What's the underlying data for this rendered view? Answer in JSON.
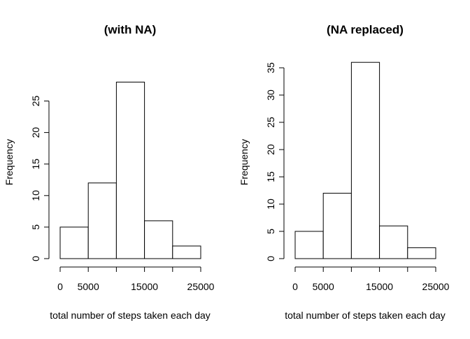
{
  "chart_data": [
    {
      "type": "bar",
      "title": "(with NA)",
      "xlabel": "total number of steps taken each day",
      "ylabel": "Frequency",
      "bins": [
        [
          0,
          5000
        ],
        [
          5000,
          10000
        ],
        [
          10000,
          15000
        ],
        [
          15000,
          20000
        ],
        [
          20000,
          25000
        ]
      ],
      "values": [
        5,
        12,
        28,
        6,
        2
      ],
      "x_ticks": [
        0,
        5000,
        15000,
        25000
      ],
      "y_ticks": [
        0,
        5,
        10,
        15,
        20,
        25
      ],
      "xlim": [
        0,
        25000
      ],
      "ylim": [
        0,
        28
      ],
      "grid": false
    },
    {
      "type": "bar",
      "title": "(NA replaced)",
      "xlabel": "total number of steps taken each day",
      "ylabel": "Frequency",
      "bins": [
        [
          0,
          5000
        ],
        [
          5000,
          10000
        ],
        [
          10000,
          15000
        ],
        [
          15000,
          20000
        ],
        [
          20000,
          25000
        ]
      ],
      "values": [
        5,
        12,
        36,
        6,
        2
      ],
      "x_ticks": [
        0,
        5000,
        15000,
        25000
      ],
      "y_ticks": [
        0,
        5,
        10,
        15,
        20,
        25,
        30,
        35
      ],
      "xlim": [
        0,
        25000
      ],
      "ylim": [
        0,
        36
      ],
      "grid": false
    }
  ]
}
